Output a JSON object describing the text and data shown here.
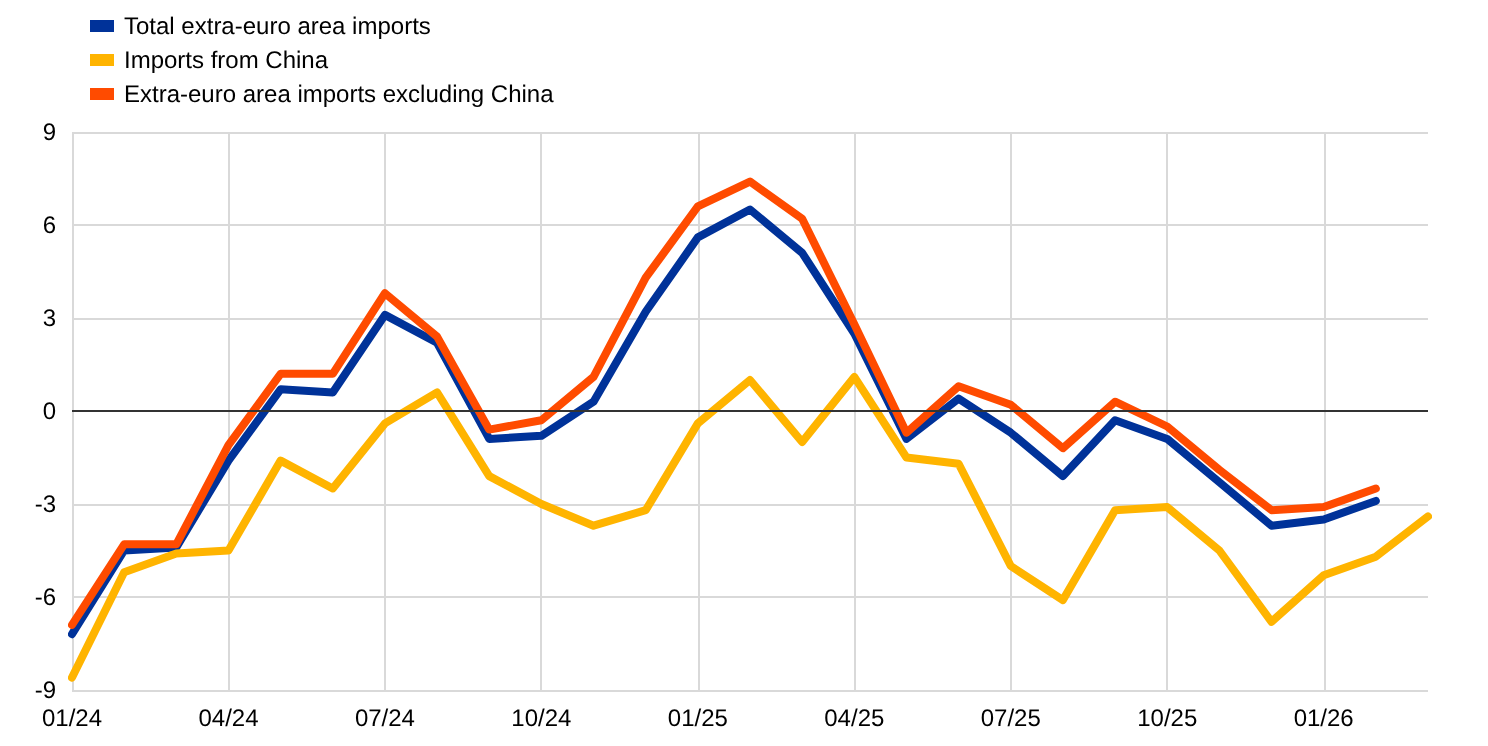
{
  "chart_data": {
    "type": "line",
    "categories": [
      "01/24",
      null,
      null,
      "04/24",
      null,
      null,
      "07/24",
      null,
      null,
      "10/24",
      null,
      null,
      "01/25",
      null,
      null,
      "04/25",
      null,
      null,
      "07/25",
      null,
      null,
      "10/25",
      null,
      null,
      "01/26",
      null,
      null
    ],
    "series": [
      {
        "name": "Total extra-euro area imports",
        "color": "#003299",
        "values": [
          -7.2,
          -4.5,
          -4.4,
          -1.6,
          0.7,
          0.6,
          3.1,
          2.2,
          -0.9,
          -0.8,
          0.3,
          3.2,
          5.6,
          6.5,
          5.1,
          2.5,
          -0.9,
          0.4,
          -0.7,
          -2.1,
          -0.3,
          -0.9,
          -2.3,
          -3.7,
          -3.5,
          -2.9,
          null
        ]
      },
      {
        "name": "Imports from China",
        "color": "#ffb400",
        "values": [
          -8.6,
          -5.2,
          -4.6,
          -4.5,
          -1.6,
          -2.5,
          -0.4,
          0.6,
          -2.1,
          -3.0,
          -3.7,
          -3.2,
          -0.4,
          1.0,
          -1.0,
          1.1,
          -1.5,
          -1.7,
          -5.0,
          -6.1,
          -3.2,
          -3.1,
          -4.5,
          -6.8,
          -5.3,
          -4.7,
          -3.4
        ]
      },
      {
        "name": "Extra-euro area imports excluding China",
        "color": "#ff4b00",
        "values": [
          -6.9,
          -4.3,
          -4.3,
          -1.1,
          1.2,
          1.2,
          3.8,
          2.4,
          -0.6,
          -0.3,
          1.1,
          4.3,
          6.6,
          7.4,
          6.2,
          2.8,
          -0.7,
          0.8,
          0.2,
          -1.2,
          0.3,
          -0.5,
          -1.9,
          -3.2,
          -3.1,
          -2.5,
          null
        ]
      }
    ],
    "ylim": [
      -9,
      9
    ],
    "yticks": [
      -9,
      -6,
      -3,
      0,
      3,
      6,
      9
    ],
    "ref_lines": [
      {
        "axis": "y",
        "value": 0,
        "color": "#333333"
      }
    ],
    "grid": true,
    "legend": "top left",
    "marker": "none",
    "line_style": "solid"
  }
}
